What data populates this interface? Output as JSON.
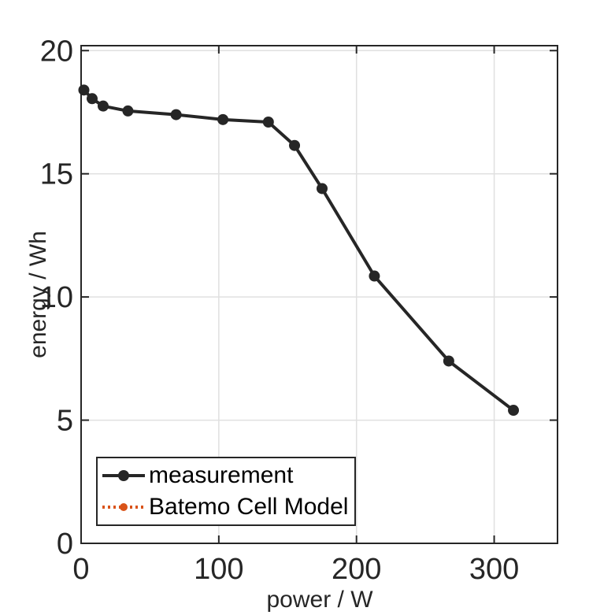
{
  "figure": {
    "background": "#ffffff"
  },
  "chart_data": {
    "type": "line",
    "title": "",
    "xlabel": "power / W",
    "ylabel": "energy / Wh",
    "xlim": [
      0,
      346
    ],
    "ylim": [
      0,
      20.2
    ],
    "xticks": [
      0,
      100,
      200,
      300
    ],
    "yticks": [
      0,
      5,
      10,
      15,
      20
    ],
    "grid": true,
    "grid_color": "#e0e0e0",
    "axis_color": "#262626",
    "tick_label_color": "#262626",
    "series": [
      {
        "name": "measurement",
        "color": "#262626",
        "line_style": "solid",
        "marker": "circle",
        "visible_in_plot": true,
        "x": [
          2,
          8,
          16,
          34,
          69,
          103,
          136,
          155,
          175,
          213,
          267,
          314
        ],
        "y": [
          18.4,
          18.05,
          17.75,
          17.55,
          17.4,
          17.2,
          17.1,
          16.15,
          14.4,
          10.85,
          7.4,
          5.4
        ]
      },
      {
        "name": "Batemo Cell Model",
        "color": "#D95319",
        "line_style": "dotted",
        "marker": "circle",
        "visible_in_plot": false,
        "x": [],
        "y": []
      }
    ],
    "legend": {
      "position": "bottom-left",
      "entries": [
        {
          "label": "measurement",
          "color": "#262626",
          "line_style": "solid"
        },
        {
          "label": "Batemo Cell Model",
          "color": "#D95319",
          "line_style": "dotted"
        }
      ]
    }
  }
}
